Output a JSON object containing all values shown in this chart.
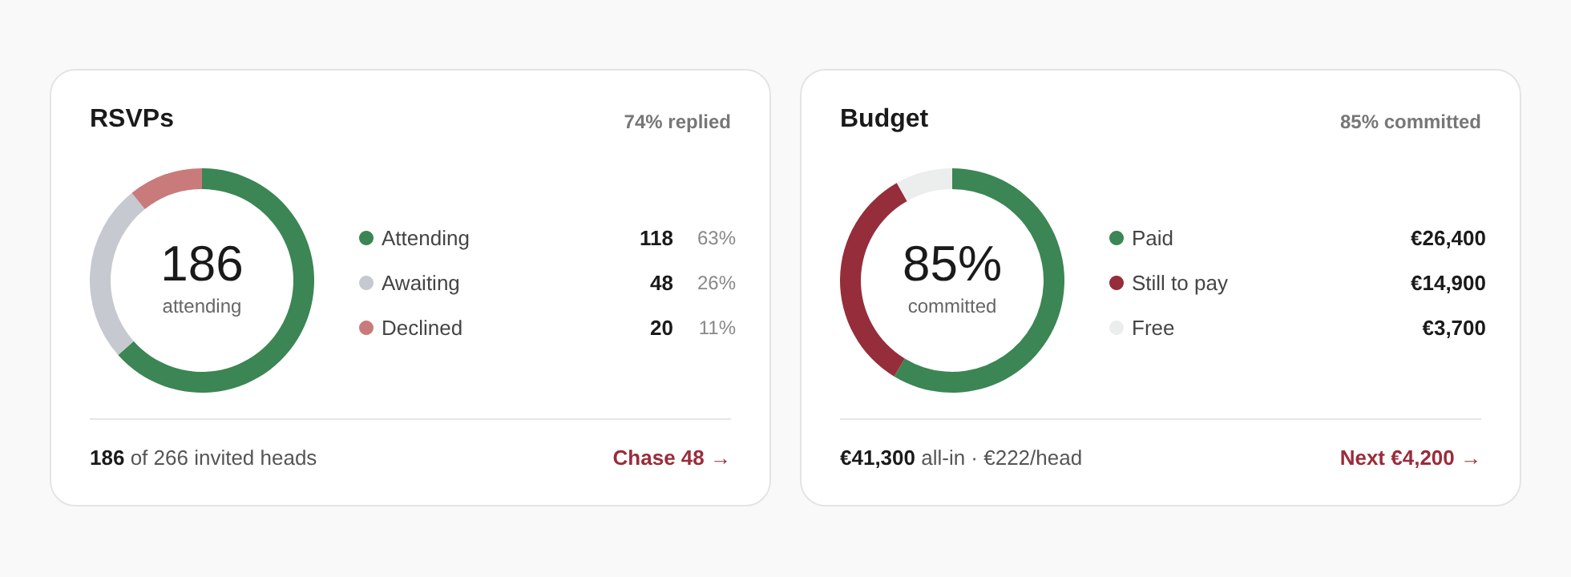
{
  "chart_data": [
    {
      "type": "donut",
      "title": "RSVPs",
      "subtitle": "74% replied",
      "categories": [
        "Attending",
        "Awaiting",
        "Declined"
      ],
      "values": [
        118,
        48,
        20
      ],
      "colors": [
        "#3b8654",
        "#c6c9d0",
        "#c97b7b"
      ],
      "value_labels": [
        "118",
        "48",
        "20"
      ],
      "legend": "right",
      "annotations": [
        "186",
        "attending",
        "186 of 266 invited heads",
        "Chase 48 →",
        "63%",
        "26%",
        "11%"
      ]
    },
    {
      "type": "donut",
      "title": "Budget",
      "subtitle": "85% committed",
      "categories": [
        "Paid",
        "Still to pay",
        "Free"
      ],
      "values": [
        26400,
        14900,
        3700
      ],
      "colors": [
        "#3b8654",
        "#962d3b",
        "#eceeed"
      ],
      "value_labels": [
        "€26,400",
        "€14,900",
        "€3,700"
      ],
      "legend": "right",
      "annotations": [
        "85%",
        "committed",
        "€41,300 all-in · €222/head",
        "Next €4,200 →"
      ]
    }
  ]
}
